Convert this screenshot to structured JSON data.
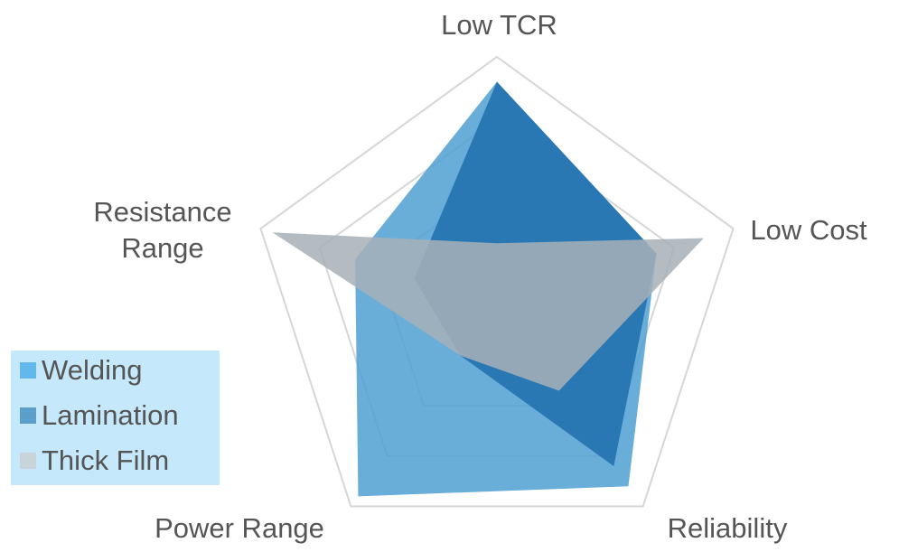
{
  "chart_data": {
    "type": "radar",
    "categories": [
      "Low TCR",
      "Low Cost",
      "Reliability",
      "Power Range",
      "Resistance Range"
    ],
    "ylim": [
      0,
      4
    ],
    "yticks": [
      1,
      2,
      3,
      4
    ],
    "grid": true,
    "series": [
      {
        "name": "Welding",
        "color": "#4f9fd2",
        "values": [
          3.6,
          2.7,
          3.6,
          3.8,
          2.4
        ]
      },
      {
        "name": "Lamination",
        "color": "#1e6fab",
        "values": [
          3.6,
          2.7,
          3.2,
          1.0,
          1.4
        ]
      },
      {
        "name": "Thick Film",
        "color": "#a7b0b7",
        "values": [
          1.0,
          3.5,
          1.7,
          1.0,
          3.8
        ]
      }
    ]
  }
}
